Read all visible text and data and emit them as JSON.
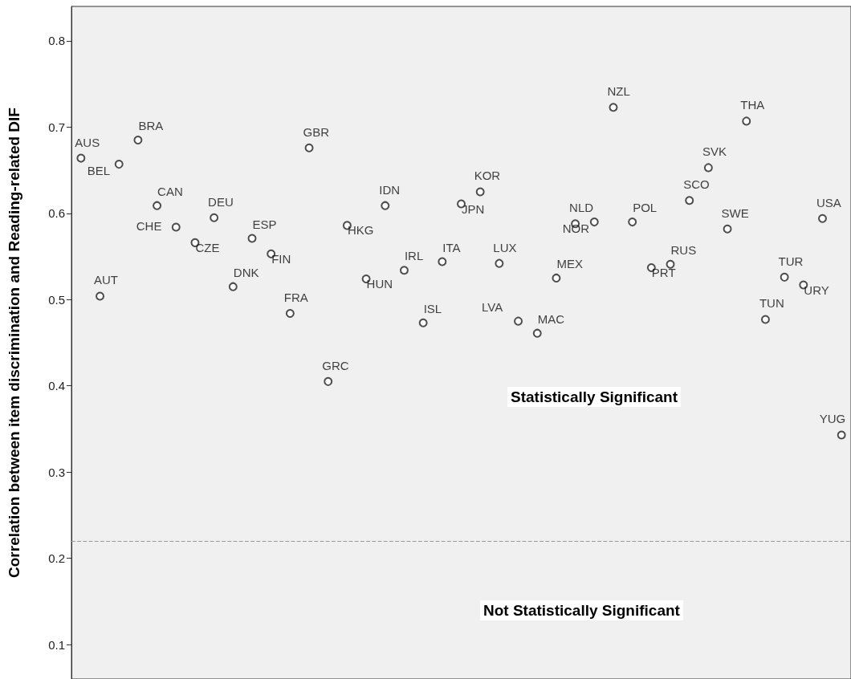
{
  "chart_data": {
    "type": "scatter",
    "ylabel": "Correlation between item discrimination and Reading-related DIF",
    "categories": [
      null,
      null,
      null,
      null,
      null,
      null,
      null,
      null,
      null,
      null,
      null,
      null,
      null,
      null,
      null,
      null,
      null,
      null,
      null,
      null,
      null,
      null,
      null,
      null,
      null,
      null,
      null,
      null,
      null,
      null,
      null,
      null,
      null,
      null,
      null,
      null,
      null,
      null,
      null,
      null,
      null
    ],
    "values": [
      0.664,
      0.504,
      0.657,
      0.685,
      0.609,
      0.584,
      0.566,
      0.595,
      0.515,
      0.571,
      0.553,
      0.484,
      0.676,
      0.405,
      0.586,
      0.524,
      0.609,
      0.534,
      0.473,
      0.544,
      0.611,
      0.625,
      0.542,
      0.475,
      0.461,
      0.525,
      0.588,
      0.59,
      0.723,
      0.59,
      0.537,
      0.541,
      0.615,
      0.653,
      0.582,
      0.707,
      0.477,
      0.526,
      0.517,
      0.594,
      0.343
    ],
    "value_labels": [
      "AUS",
      "AUT",
      "BEL",
      "BRA",
      "CAN",
      "CHE",
      "CZE",
      "DEU",
      "DNK",
      "ESP",
      "FIN",
      "FRA",
      "GBR",
      "GRC",
      "HKG",
      "HUN",
      "IDN",
      "IRL",
      "ISL",
      "ITA",
      "JPN",
      "KOR",
      "LUX",
      "LVA",
      "MAC",
      "MEX",
      "NLD",
      "NOR",
      "NZL",
      "POL",
      "PRT",
      "RUS",
      "SCO",
      "SVK",
      "SWE",
      "THA",
      "TUN",
      "TUR",
      "URY",
      "USA",
      "YUG"
    ],
    "color": "#222222",
    "marker": "circle",
    "ylim": [
      0.06,
      0.84
    ],
    "yticks": [
      0.1,
      0.2,
      0.3,
      0.4,
      0.5,
      0.6,
      0.7,
      0.8
    ],
    "grid": false,
    "tick_labels": "y",
    "ref_lines": [
      {
        "axis": "y",
        "value": 0.22,
        "color": "#999999",
        "line_style": "dashed"
      }
    ],
    "annotations": [
      "Statistically Significant",
      "Not Statistically Significant"
    ]
  }
}
